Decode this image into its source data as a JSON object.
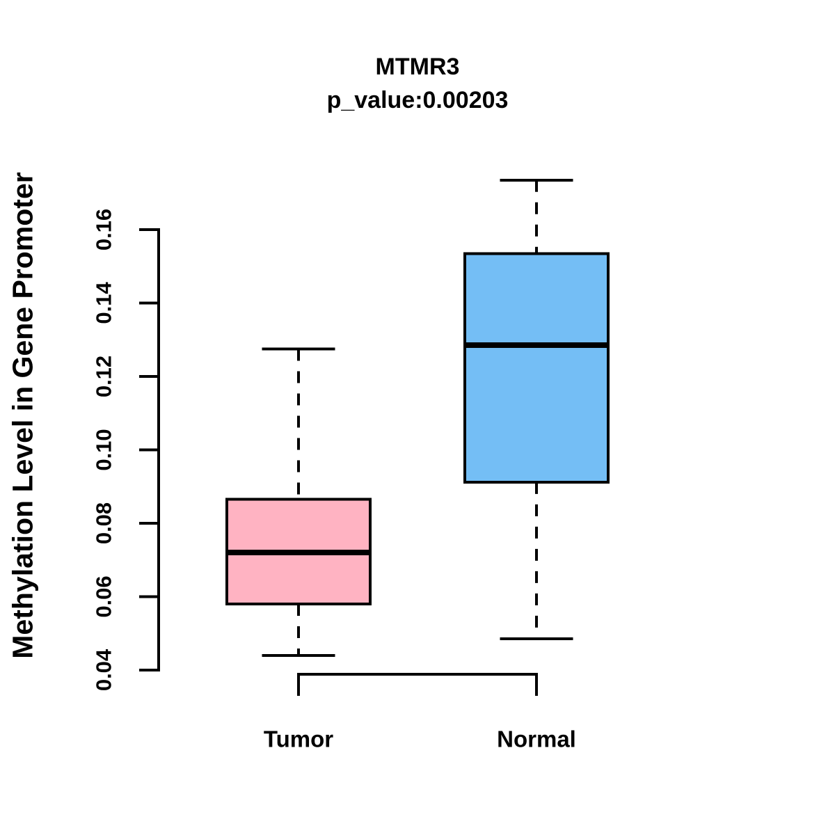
{
  "figure": {
    "background": "#ffffff",
    "ink_color": "#000000"
  },
  "chart_data": {
    "type": "boxplot",
    "title": "MTMR3",
    "subtitle": "p_value:0.00203",
    "ylabel": "Methylation Level in Gene Promoter",
    "xlabel": "",
    "categories": [
      "Tumor",
      "Normal"
    ],
    "series": [
      {
        "name": "Tumor",
        "lower_whisker": 0.044,
        "q1": 0.058,
        "median": 0.072,
        "q3": 0.0865,
        "upper_whisker": 0.1275,
        "fill": "#FFB3C2"
      },
      {
        "name": "Normal",
        "lower_whisker": 0.0485,
        "q1": 0.0912,
        "median": 0.1285,
        "q3": 0.1535,
        "upper_whisker": 0.1735,
        "fill": "#74BEF5"
      }
    ],
    "yticks": [
      0.04,
      0.06,
      0.08,
      0.1,
      0.12,
      0.14,
      0.16
    ],
    "ytick_labels": [
      "0.04",
      "0.06",
      "0.08",
      "0.10",
      "0.12",
      "0.14",
      "0.16"
    ],
    "ylim": [
      0.035,
      0.178
    ],
    "grid": false,
    "legend": "none",
    "whisker_style": "dashed",
    "box_border_color": "#000000",
    "median_color": "#000000"
  }
}
